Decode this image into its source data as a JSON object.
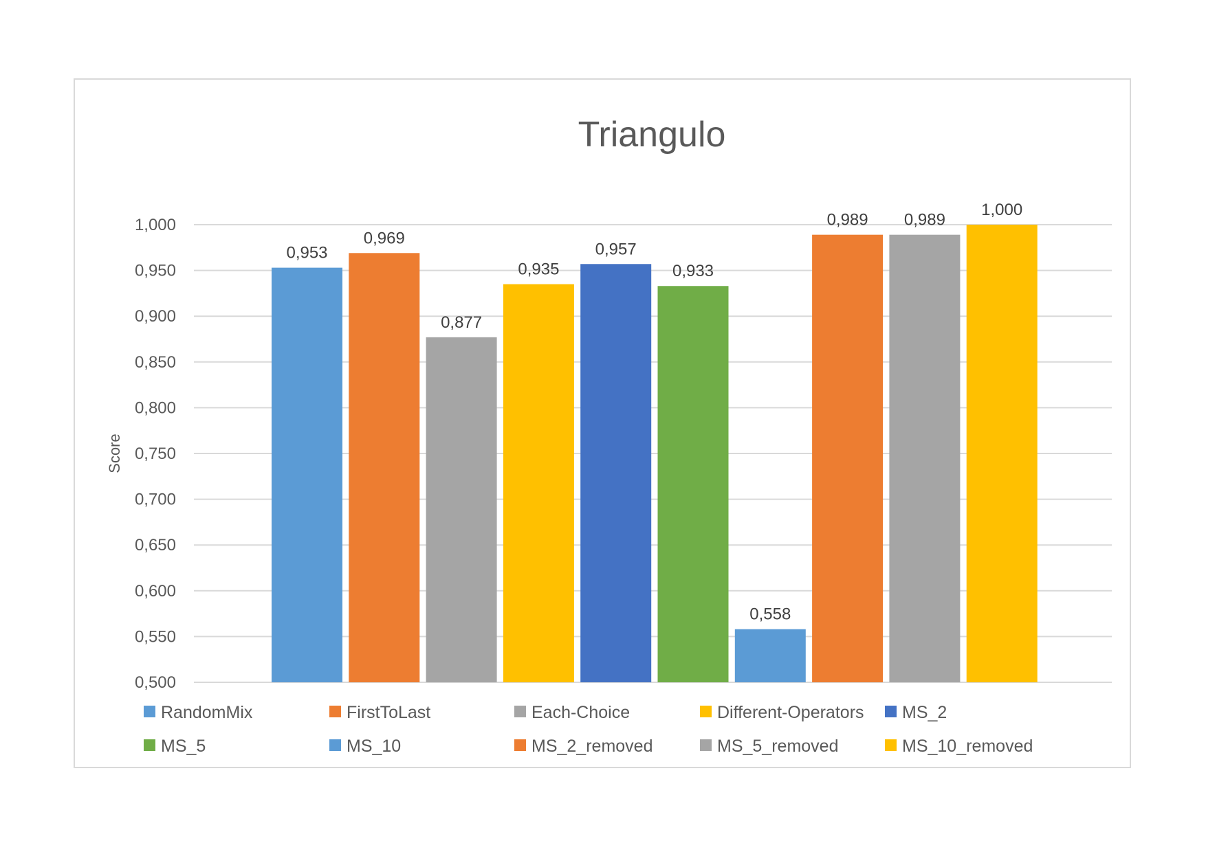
{
  "chart_data": {
    "type": "bar",
    "title": "Triangulo",
    "xlabel": "",
    "ylabel": "Score",
    "ylim": [
      0.5,
      1.0
    ],
    "yticks": [
      "0,500",
      "0,550",
      "0,600",
      "0,650",
      "0,700",
      "0,750",
      "0,800",
      "0,850",
      "0,900",
      "0,950",
      "1,000"
    ],
    "grid": true,
    "legend_position": "bottom",
    "series": [
      {
        "name": "RandomMix",
        "value": 0.953,
        "label": "0,953",
        "color": "#5b9bd5"
      },
      {
        "name": "FirstToLast",
        "value": 0.969,
        "label": "0,969",
        "color": "#ed7d31"
      },
      {
        "name": "Each-Choice",
        "value": 0.877,
        "label": "0,877",
        "color": "#a5a5a5"
      },
      {
        "name": "Different-Operators",
        "value": 0.935,
        "label": "0,935",
        "color": "#ffc000"
      },
      {
        "name": "MS_2",
        "value": 0.957,
        "label": "0,957",
        "color": "#4472c4"
      },
      {
        "name": "MS_5",
        "value": 0.933,
        "label": "0,933",
        "color": "#70ad47"
      },
      {
        "name": "MS_10",
        "value": 0.558,
        "label": "0,558",
        "color": "#5b9bd5"
      },
      {
        "name": "MS_2_removed",
        "value": 0.989,
        "label": "0,989",
        "color": "#ed7d31"
      },
      {
        "name": "MS_5_removed",
        "value": 0.989,
        "label": "0,989",
        "color": "#a5a5a5"
      },
      {
        "name": "MS_10_removed",
        "value": 1.0,
        "label": "1,000",
        "color": "#ffc000"
      }
    ]
  }
}
